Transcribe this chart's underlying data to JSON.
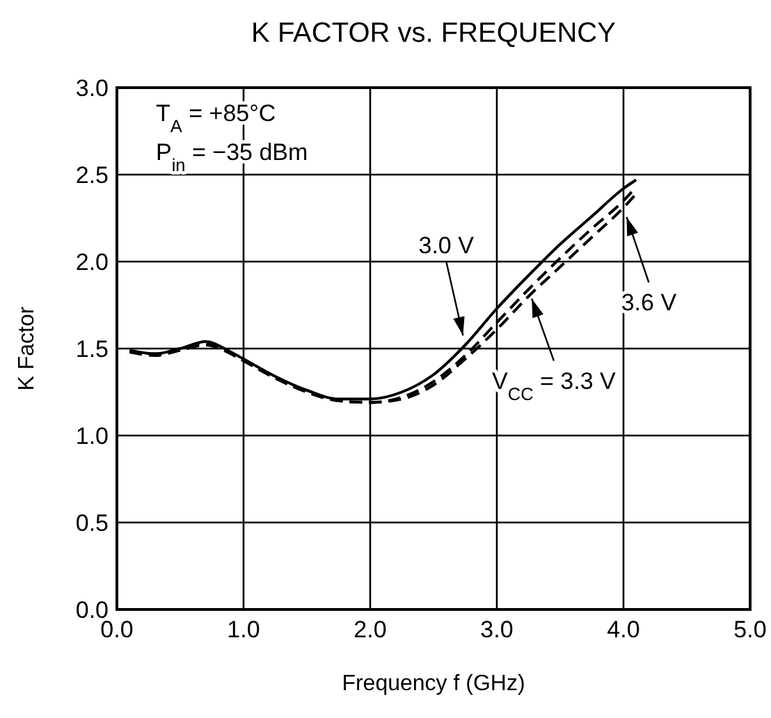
{
  "chart_data": {
    "type": "line",
    "title": "K FACTOR vs. FREQUENCY",
    "xlabel": "Frequency  f (GHz)",
    "ylabel": "K Factor",
    "annotations": [
      "T$_{A}$ = +85°C",
      "P$_{in}$ = −35 dBm"
    ],
    "x": [
      0.1,
      0.3,
      0.5,
      0.7,
      0.9,
      1.0,
      1.25,
      1.5,
      1.75,
      2.0,
      2.25,
      2.5,
      2.75,
      3.0,
      3.25,
      3.5,
      3.75,
      4.0,
      4.1
    ],
    "series": [
      {
        "name": "3.0 V",
        "color": "#000000",
        "line_style": "solid",
        "values": [
          1.49,
          1.47,
          1.5,
          1.54,
          1.48,
          1.44,
          1.34,
          1.26,
          1.21,
          1.21,
          1.25,
          1.35,
          1.52,
          1.73,
          1.92,
          2.1,
          2.26,
          2.42,
          2.47
        ]
      },
      {
        "name": "V$_{CC}$ = 3.3 V",
        "color": "#000000",
        "line_style": "dashed",
        "values": [
          1.48,
          1.47,
          1.5,
          1.53,
          1.47,
          1.43,
          1.33,
          1.25,
          1.2,
          1.19,
          1.22,
          1.31,
          1.46,
          1.65,
          1.84,
          2.02,
          2.19,
          2.35,
          2.43
        ]
      },
      {
        "name": "3.6 V",
        "color": "#000000",
        "line_style": "dashed",
        "values": [
          1.48,
          1.46,
          1.49,
          1.52,
          1.47,
          1.43,
          1.33,
          1.25,
          1.2,
          1.19,
          1.21,
          1.29,
          1.44,
          1.61,
          1.8,
          1.97,
          2.14,
          2.31,
          2.39
        ]
      }
    ],
    "xlim": [
      0,
      5
    ],
    "xticks": [
      {
        "value": 0,
        "label": "0.0"
      },
      {
        "value": 1,
        "label": "1.0"
      },
      {
        "value": 2,
        "label": "2.0"
      },
      {
        "value": 3,
        "label": "3.0"
      },
      {
        "value": 4,
        "label": "4.0"
      },
      {
        "value": 5,
        "label": "5.0"
      }
    ],
    "ylim": [
      0,
      3
    ],
    "yticks": [
      {
        "value": 0,
        "label": "0.0"
      },
      {
        "value": 0.5,
        "label": "0.5"
      },
      {
        "value": 1,
        "label": "1.0"
      },
      {
        "value": 1.5,
        "label": "1.5"
      },
      {
        "value": 2,
        "label": "2.0"
      },
      {
        "value": 2.5,
        "label": "2.5"
      },
      {
        "value": 3,
        "label": "3.0"
      }
    ],
    "grid": true
  }
}
